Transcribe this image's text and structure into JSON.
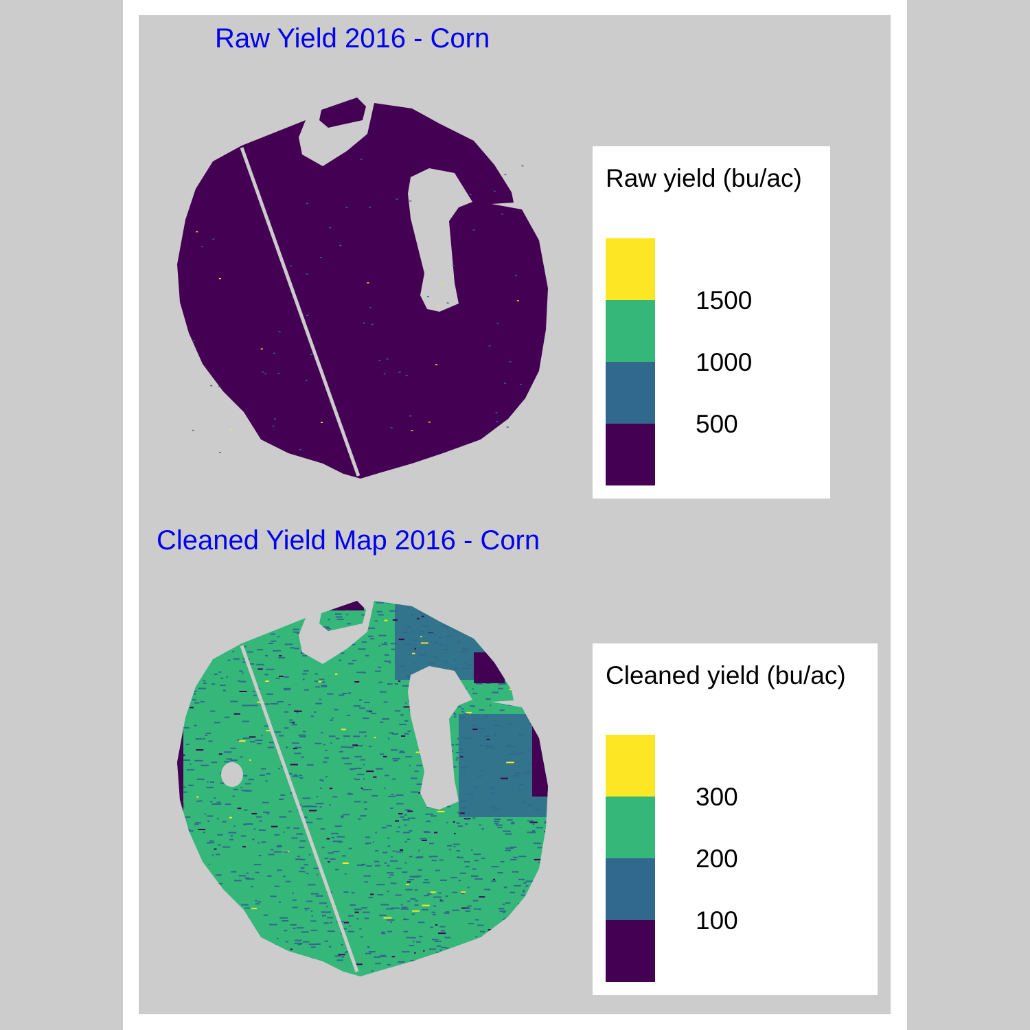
{
  "maps": [
    {
      "id": "raw",
      "title": "Raw Yield 2016 - Corn",
      "legend": {
        "title": "Raw yield (bu/ac)",
        "colors": [
          "#fde725",
          "#35b779",
          "#31688e",
          "#440154"
        ],
        "tick_labels": [
          "1500",
          "1000",
          "500"
        ]
      },
      "dominant_color": "#440154"
    },
    {
      "id": "clean",
      "title": "Cleaned Yield Map 2016 - Corn",
      "legend": {
        "title": "Cleaned yield (bu/ac)",
        "colors": [
          "#fde725",
          "#35b779",
          "#31688e",
          "#440154"
        ],
        "tick_labels": [
          "300",
          "200",
          "100"
        ]
      },
      "dominant_color": "#35b779"
    }
  ],
  "colors": {
    "background": "#cccccc",
    "title": "#0000ee",
    "yellow": "#fde725",
    "green": "#35b779",
    "blue": "#31688e",
    "purple": "#440154"
  }
}
